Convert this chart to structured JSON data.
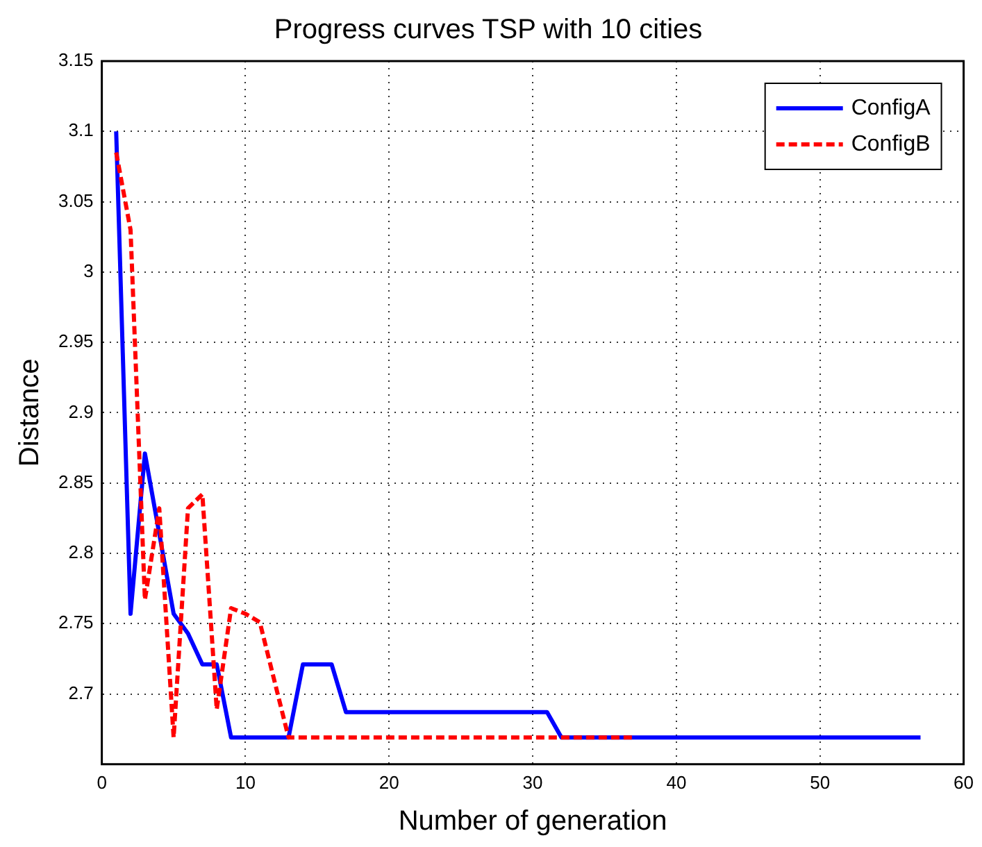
{
  "chart_data": {
    "type": "line",
    "title": "Progress curves TSP with 10 cities",
    "xlabel": "Number of generation",
    "ylabel": "Distance",
    "xlim": [
      0,
      60
    ],
    "xticks": [
      0,
      10,
      20,
      30,
      40,
      50,
      60
    ],
    "ylim": [
      2.65,
      3.15
    ],
    "yticks": [
      {
        "value": 2.65,
        "label": null
      },
      2.7,
      2.75,
      2.8,
      2.85,
      2.9,
      2.95,
      3,
      3.05,
      3.1,
      3.15
    ],
    "grid": true,
    "legend": "top right",
    "marker": "none",
    "series": [
      {
        "name": "ConfigA",
        "color": "#0000ff",
        "line_style": "solid",
        "x": [
          1,
          2,
          3,
          5,
          6,
          7,
          8,
          9,
          13,
          14,
          16,
          17,
          31,
          32,
          57
        ],
        "values": [
          3.1,
          2.757,
          2.871,
          2.757,
          2.743,
          2.721,
          2.721,
          2.669,
          2.669,
          2.721,
          2.721,
          2.687,
          2.687,
          2.669,
          2.669
        ]
      },
      {
        "name": "ConfigB",
        "color": "#ff0000",
        "line_style": "dashed",
        "x": [
          1,
          2,
          3,
          4,
          5,
          6,
          7,
          8,
          9,
          10,
          11,
          13,
          37
        ],
        "values": [
          3.085,
          3.03,
          2.767,
          2.832,
          2.669,
          2.832,
          2.842,
          2.689,
          2.761,
          2.757,
          2.751,
          2.669,
          2.669
        ]
      }
    ]
  }
}
